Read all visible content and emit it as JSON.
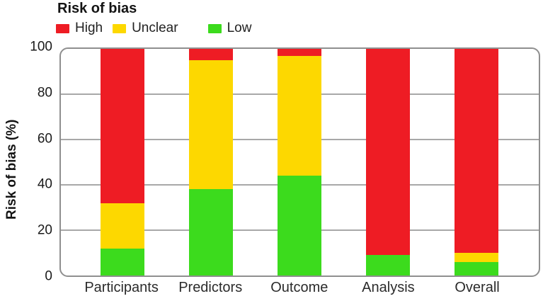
{
  "chart_data": {
    "type": "bar",
    "stacked": true,
    "title": "Risk of bias",
    "ylabel": "Risk of bias (%)",
    "xlabel": "",
    "categories": [
      "Participants",
      "Predictors",
      "Outcome",
      "Analysis",
      "Overall"
    ],
    "series": [
      {
        "name": "High",
        "color": "#ee1c24",
        "values": [
          68,
          5,
          3,
          91,
          90
        ]
      },
      {
        "name": "Unclear",
        "color": "#fdd800",
        "values": [
          20,
          57,
          53,
          0,
          4
        ]
      },
      {
        "name": "Low",
        "color": "#3cdb1d",
        "values": [
          12,
          38,
          44,
          9,
          6
        ]
      }
    ],
    "ylim": [
      0,
      100
    ],
    "yticks": [
      0,
      20,
      40,
      60,
      80,
      100
    ],
    "gridlines": [
      20,
      40,
      60,
      80
    ],
    "grid": true,
    "legend_position": "top-left",
    "bar_center_percents": [
      12.9,
      31.4,
      49.9,
      68.4,
      86.9
    ],
    "frame_color": "#8f8f8f",
    "gridline_color": "#a8a8a8"
  }
}
